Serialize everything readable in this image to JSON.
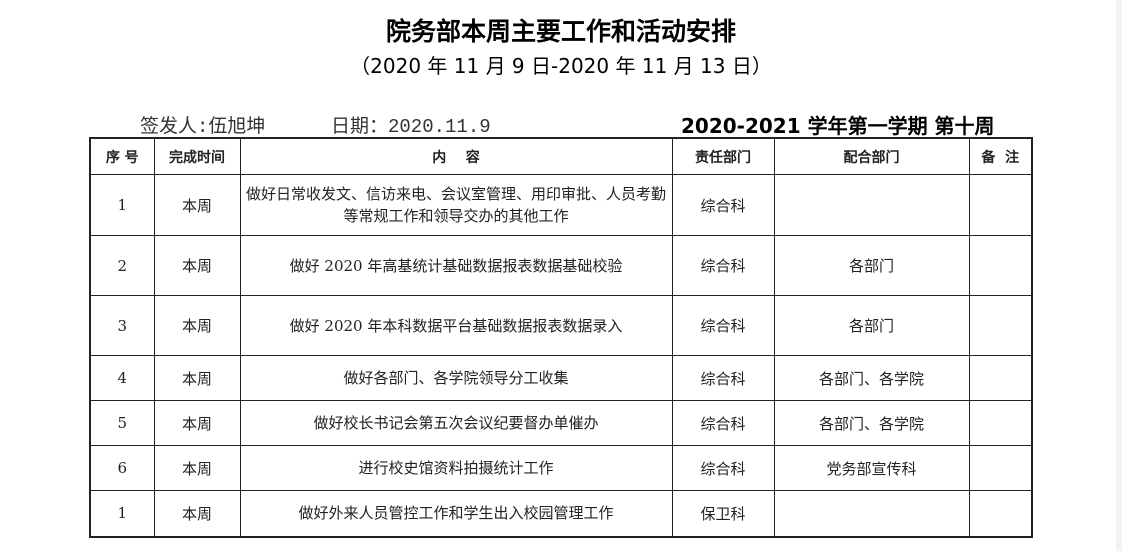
{
  "title": "院务部本周主要工作和活动安排",
  "subtitle": "（2020 年 11 月 9 日-2020 年 11 月 13 日）",
  "issuer": "签发人:伍旭坤",
  "date": "日期：2020.11.9",
  "term": "2020-2021 学年第一学期  第十周",
  "headers": [
    "序 号",
    "完成时间",
    "内    容",
    "责任部门",
    "配合部门",
    "备  注"
  ],
  "rows": [
    {
      "no": "1",
      "time": "本周",
      "content": "做好日常收发文、信访来电、会议室管理、用印审批、人员考勤等常规工作和领导交办的其他工作",
      "dept": "综合科",
      "coop": "",
      "note": ""
    },
    {
      "no": "2",
      "time": "本周",
      "content": "做好 2020 年高基统计基础数据报表数据基础校验",
      "dept": "综合科",
      "coop": "各部门",
      "note": ""
    },
    {
      "no": "3",
      "time": "本周",
      "content": "做好 2020 年本科数据平台基础数据报表数据录入",
      "dept": "综合科",
      "coop": "各部门",
      "note": ""
    },
    {
      "no": "4",
      "time": "本周",
      "content": "做好各部门、各学院领导分工收集",
      "dept": "综合科",
      "coop": "各部门、各学院",
      "note": ""
    },
    {
      "no": "5",
      "time": "本周",
      "content": "做好校长书记会第五次会议纪要督办单催办",
      "dept": "综合科",
      "coop": "各部门、各学院",
      "note": ""
    },
    {
      "no": "6",
      "time": "本周",
      "content": "进行校史馆资料拍摄统计工作",
      "dept": "综合科",
      "coop": "党务部宣传科",
      "note": ""
    },
    {
      "no": "1",
      "time": "本周",
      "content": "做好外来人员管控工作和学生出入校园管理工作",
      "dept": "保卫科",
      "coop": "",
      "note": ""
    }
  ]
}
